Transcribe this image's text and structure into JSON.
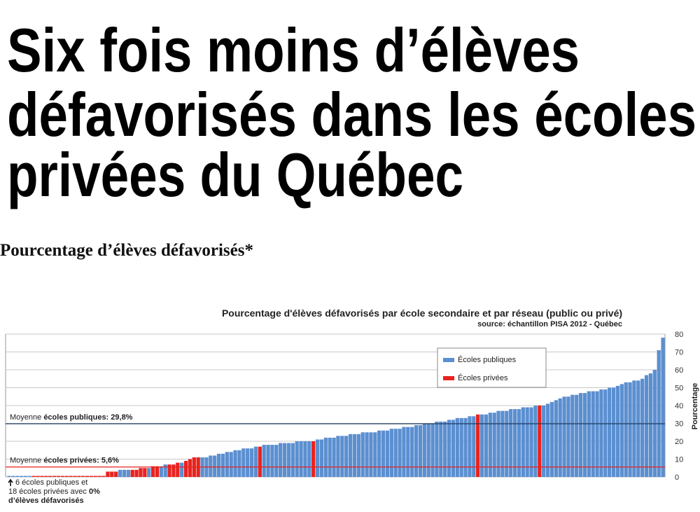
{
  "headline": [
    "Six fois moins d’élèves",
    "défavorisés dans les écoles",
    "privées du Québec"
  ],
  "subtitle": "Pourcentage d’élèves défavorisés*",
  "chart_data": {
    "type": "bar",
    "title": "Pourcentage d'élèves défavorisés par école secondaire et par réseau (public ou privé)",
    "source": "source: échantillon PISA 2012 - Québec",
    "y_label": "Pourcentage",
    "ylim": [
      0,
      80
    ],
    "yticks": [
      0,
      10,
      20,
      30,
      40,
      50,
      60,
      70,
      80
    ],
    "grid": true,
    "legend": "top-right",
    "series": [
      {
        "name": "Écoles publiques",
        "color": "#5b8fd0",
        "values": [
          0,
          0,
          0,
          0,
          0,
          0,
          null,
          null,
          null,
          null,
          null,
          null,
          null,
          null,
          null,
          null,
          null,
          null,
          null,
          null,
          null,
          null,
          null,
          null,
          null,
          null,
          null,
          4,
          4,
          4,
          null,
          null,
          null,
          null,
          5,
          null,
          null,
          6,
          7,
          null,
          null,
          null,
          8,
          null,
          null,
          null,
          null,
          11,
          11,
          12,
          12,
          13,
          13,
          14,
          14,
          15,
          15,
          16,
          16,
          16,
          17,
          null,
          18,
          18,
          18,
          18,
          19,
          19,
          19,
          19,
          20,
          20,
          20,
          20,
          null,
          21,
          21,
          22,
          22,
          22,
          23,
          23,
          23,
          24,
          24,
          24,
          25,
          25,
          25,
          25,
          26,
          26,
          26,
          27,
          27,
          27,
          28,
          28,
          28,
          29,
          29,
          30,
          30,
          30,
          31,
          31,
          31,
          32,
          32,
          33,
          33,
          33,
          34,
          34,
          null,
          35,
          35,
          36,
          36,
          37,
          37,
          37,
          38,
          38,
          38,
          39,
          39,
          39,
          40,
          null,
          40,
          41,
          42,
          43,
          44,
          45,
          45,
          46,
          46,
          47,
          47,
          48,
          48,
          48,
          49,
          49,
          50,
          50,
          51,
          52,
          53,
          53,
          54,
          54,
          55,
          57,
          58,
          60,
          71,
          78
        ]
      },
      {
        "name": "Écoles privées",
        "color": "#e8231f",
        "values": [
          null,
          null,
          null,
          null,
          null,
          null,
          0,
          0,
          0,
          0,
          0,
          0,
          0,
          0,
          0,
          0,
          0,
          0,
          0,
          0,
          0,
          0,
          0,
          0,
          3,
          3,
          3,
          null,
          null,
          null,
          4,
          4,
          5,
          5,
          null,
          6,
          6,
          null,
          null,
          7,
          7,
          8,
          null,
          9,
          10,
          11,
          11,
          null,
          null,
          null,
          null,
          null,
          null,
          null,
          null,
          null,
          null,
          null,
          null,
          null,
          null,
          17,
          null,
          null,
          null,
          null,
          null,
          null,
          null,
          null,
          null,
          null,
          null,
          null,
          20,
          null,
          null,
          null,
          null,
          null,
          null,
          null,
          null,
          null,
          null,
          null,
          null,
          null,
          null,
          null,
          null,
          null,
          null,
          null,
          null,
          null,
          null,
          null,
          null,
          null,
          null,
          null,
          null,
          null,
          null,
          null,
          null,
          null,
          null,
          null,
          null,
          null,
          null,
          null,
          35,
          null,
          null,
          null,
          null,
          null,
          null,
          null,
          null,
          null,
          null,
          null,
          null,
          null,
          null,
          40,
          null,
          null,
          null,
          null,
          null,
          null,
          null,
          null,
          null,
          null,
          null,
          null,
          null,
          null,
          null,
          null,
          null,
          null,
          null,
          null,
          null,
          null,
          null,
          null,
          null,
          null,
          null,
          null,
          null,
          null
        ]
      }
    ],
    "reference_lines": [
      {
        "label": "Moyenne ",
        "label_bold": "écoles publiques: 29,8%",
        "value": 29.8,
        "color": "#1f3a5f"
      },
      {
        "label": "Moyenne ",
        "label_bold": "écoles privées: 5,6%",
        "value": 5.6,
        "color": "#e8231f"
      }
    ],
    "note": {
      "line1": "6 écoles publiques et",
      "line2": "18 écoles privées avec ",
      "line2_bold": "0%",
      "line3": "d’élèves défavorisés"
    }
  }
}
